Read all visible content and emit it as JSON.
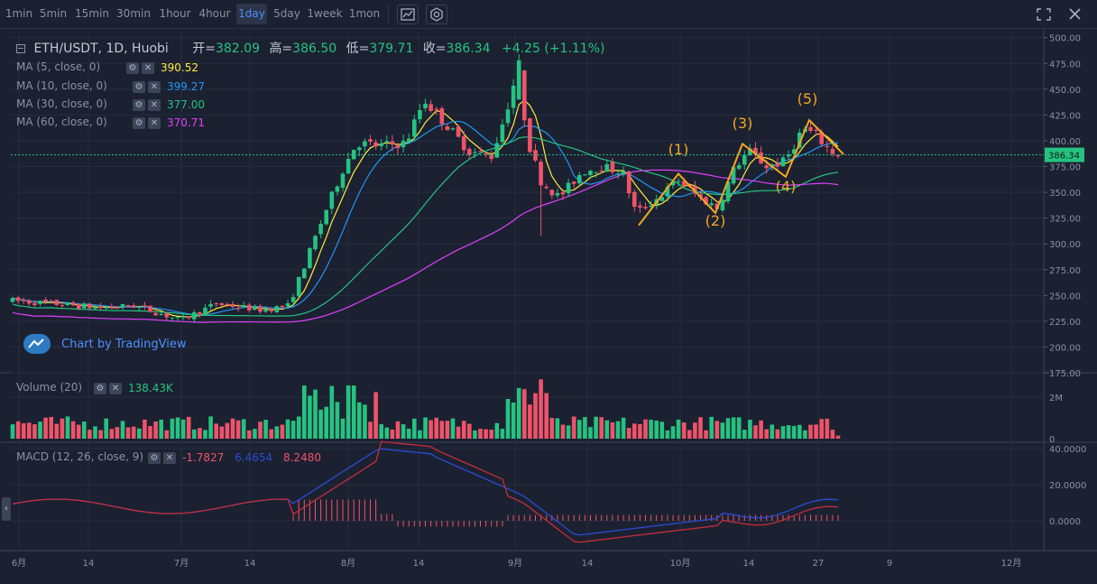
{
  "toolbar": {
    "timeframes": [
      "1min",
      "5min",
      "15min",
      "30min",
      "1hour",
      "4hour",
      "1day",
      "5day",
      "1week",
      "1mon"
    ],
    "active_timeframe": "1day",
    "icons": [
      "chart-type-icon",
      "settings-icon",
      "fullscreen-icon",
      "close-icon"
    ]
  },
  "main_legend": {
    "symbol": "ETH/USDT, 1D, Huobi",
    "open_label": "开=",
    "open": "382.09",
    "high_label": "高=",
    "high": "386.50",
    "low_label": "低=",
    "low": "379.71",
    "close_label": "收=",
    "close": "386.34",
    "change": "+4.25 (+1.11%)"
  },
  "ma": [
    {
      "label": "MA (5, close, 0)",
      "value": "390.52",
      "color": "#ffeb3b"
    },
    {
      "label": "MA (10, close, 0)",
      "value": "399.27",
      "color": "#2196f3"
    },
    {
      "label": "MA (30, close, 0)",
      "value": "377.00",
      "color": "#26c281"
    },
    {
      "label": "MA (60, close, 0)",
      "value": "370.71",
      "color": "#e040fb"
    }
  ],
  "watermark": "Chart by TradingView",
  "price_axis": [
    "500.00",
    "475.00",
    "450.00",
    "425.00",
    "400.00",
    "375.00",
    "350.00",
    "325.00",
    "300.00",
    "275.00",
    "250.00",
    "225.00",
    "200.00",
    "175.00"
  ],
  "last_price": "386.34",
  "volume_legend": {
    "label": "Volume (20)",
    "value": "138.43K"
  },
  "volume_axis": [
    "2M",
    "0"
  ],
  "macd_legend": {
    "label": "MACD (12, 26, close, 9)",
    "hist": "-1.7827",
    "macd": "6.4654",
    "signal": "8.2480"
  },
  "macd_axis": [
    "40.0000",
    "20.0000",
    "0.0000"
  ],
  "time_axis": [
    "6月",
    "14",
    "7月",
    "14",
    "8月",
    "14",
    "9月",
    "14",
    "10月",
    "14",
    "27",
    "9",
    "12月"
  ],
  "wave_labels": [
    "(1)",
    "(2)",
    "(3)",
    "(4)",
    "(5)"
  ],
  "colors": {
    "up": "#26c281",
    "down": "#ef5369",
    "accent": "#4d90fe",
    "wave": "#f5a623",
    "bg": "#1b2131"
  },
  "chart_data": {
    "type": "candlestick",
    "title": "ETH/USDT, 1D, Huobi",
    "ylim": [
      175,
      505
    ],
    "series": [
      {
        "name": "MA (5, close, 0)",
        "last": 390.52
      },
      {
        "name": "MA (10, close, 0)",
        "last": 399.27
      },
      {
        "name": "MA (30, close, 0)",
        "last": 377.0
      },
      {
        "name": "MA (60, close, 0)",
        "last": 370.71
      }
    ],
    "last_close": 386.34
  }
}
